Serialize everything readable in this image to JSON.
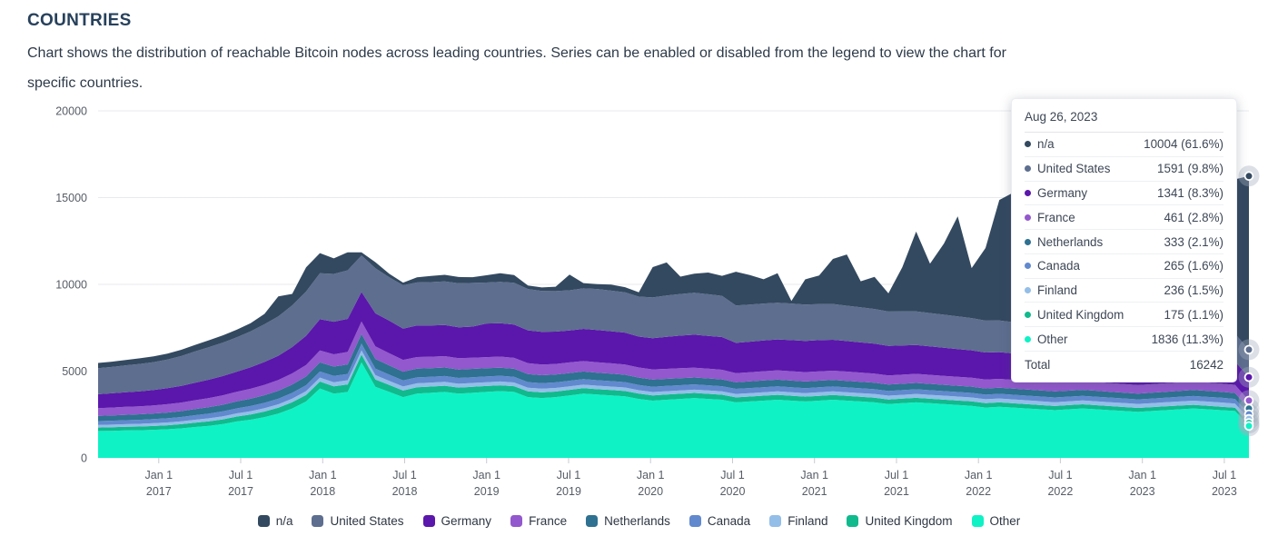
{
  "page": {
    "title": "COUNTRIES",
    "description_line1": "Chart shows the distribution of reachable Bitcoin nodes across leading countries. Series can be enabled or disabled from the legend to view the chart for",
    "description_line2": "specific countries."
  },
  "chart_data": {
    "type": "area",
    "stacked": true,
    "title": "COUNTRIES",
    "xlabel": "",
    "ylabel": "",
    "grid": "horizontal",
    "legend_position": "bottom",
    "x_start": 2016.63,
    "x_end": 2023.65,
    "ylim": [
      0,
      20000
    ],
    "y_ticks": [
      0,
      5000,
      10000,
      15000,
      20000
    ],
    "x_ticks": [
      {
        "v": 2017.0,
        "l1": "Jan 1",
        "l2": "2017"
      },
      {
        "v": 2017.5,
        "l1": "Jul 1",
        "l2": "2017"
      },
      {
        "v": 2018.0,
        "l1": "Jan 1",
        "l2": "2018"
      },
      {
        "v": 2018.5,
        "l1": "Jul 1",
        "l2": "2018"
      },
      {
        "v": 2019.0,
        "l1": "Jan 1",
        "l2": "2019"
      },
      {
        "v": 2019.5,
        "l1": "Jul 1",
        "l2": "2019"
      },
      {
        "v": 2020.0,
        "l1": "Jan 1",
        "l2": "2020"
      },
      {
        "v": 2020.5,
        "l1": "Jul 1",
        "l2": "2020"
      },
      {
        "v": 2021.0,
        "l1": "Jan 1",
        "l2": "2021"
      },
      {
        "v": 2021.5,
        "l1": "Jul 1",
        "l2": "2021"
      },
      {
        "v": 2022.0,
        "l1": "Jan 1",
        "l2": "2022"
      },
      {
        "v": 2022.5,
        "l1": "Jul 1",
        "l2": "2022"
      },
      {
        "v": 2023.0,
        "l1": "Jan 1",
        "l2": "2023"
      },
      {
        "v": 2023.5,
        "l1": "Jul 1",
        "l2": "2023"
      }
    ],
    "series": [
      {
        "name": "n/a",
        "color": "#334960",
        "values": [
          300,
          300,
          310,
          320,
          330,
          340,
          360,
          380,
          400,
          420,
          440,
          470,
          600,
          1150,
          660,
          1400,
          1160,
          900,
          1040,
          190,
          350,
          200,
          150,
          300,
          350,
          380,
          360,
          330,
          420,
          500,
          450,
          200,
          200,
          250,
          900,
          300,
          280,
          350,
          300,
          250,
          1750,
          1900,
          1000,
          1100,
          1250,
          1150,
          1950,
          1700,
          1400,
          1700,
          150,
          1450,
          1650,
          2600,
          2950,
          1500,
          1850,
          1050,
          2550,
          4600,
          2850,
          4100,
          5770,
          2880,
          4180,
          6950,
          7470,
          7100,
          7400,
          7000,
          7250,
          7650,
          7400,
          7900,
          7650,
          8150,
          8500,
          8200,
          8650,
          8300,
          8800,
          8650,
          8900,
          10004
        ]
      },
      {
        "name": "United States",
        "color": "#5d6e8f",
        "values": [
          1500,
          1520,
          1550,
          1580,
          1600,
          1650,
          1720,
          1800,
          1870,
          1930,
          1980,
          2070,
          2170,
          2270,
          2400,
          2550,
          2650,
          2750,
          2800,
          2100,
          2600,
          2500,
          2500,
          2480,
          2500,
          2520,
          2540,
          2520,
          2360,
          2380,
          2400,
          2380,
          2360,
          2340,
          2320,
          2340,
          2360,
          2340,
          2320,
          2300,
          2350,
          2380,
          2400,
          2420,
          2400,
          2380,
          2150,
          2140,
          2130,
          2120,
          2110,
          2100,
          2080,
          2060,
          2040,
          2020,
          2000,
          1980,
          1960,
          1940,
          1920,
          1900,
          1880,
          1860,
          1840,
          1820,
          1800,
          1780,
          1760,
          1740,
          1720,
          1710,
          1700,
          1690,
          1680,
          1670,
          1660,
          1650,
          1640,
          1630,
          1620,
          1610,
          1600,
          1591
        ]
      },
      {
        "name": "Germany",
        "color": "#5b17ab",
        "values": [
          800,
          820,
          840,
          860,
          890,
          920,
          960,
          1010,
          1060,
          1110,
          1160,
          1240,
          1320,
          1400,
          1520,
          1680,
          1800,
          1880,
          1900,
          1700,
          1900,
          1880,
          1800,
          1820,
          1800,
          1790,
          1780,
          1790,
          1940,
          1930,
          1920,
          1900,
          1880,
          1860,
          1840,
          1850,
          1860,
          1850,
          1840,
          1780,
          1800,
          1850,
          1880,
          1900,
          1890,
          1880,
          1750,
          1760,
          1770,
          1780,
          1790,
          1800,
          1800,
          1780,
          1760,
          1740,
          1720,
          1700,
          1680,
          1660,
          1640,
          1620,
          1600,
          1580,
          1560,
          1540,
          1520,
          1500,
          1480,
          1460,
          1450,
          1440,
          1430,
          1420,
          1410,
          1400,
          1390,
          1380,
          1370,
          1360,
          1355,
          1350,
          1345,
          1341
        ]
      },
      {
        "name": "France",
        "color": "#9358cd",
        "values": [
          450,
          455,
          460,
          465,
          470,
          480,
          495,
          510,
          525,
          540,
          555,
          575,
          595,
          615,
          640,
          665,
          690,
          710,
          720,
          720,
          730,
          700,
          680,
          670,
          660,
          655,
          650,
          645,
          640,
          635,
          630,
          625,
          620,
          615,
          610,
          605,
          600,
          595,
          590,
          585,
          580,
          575,
          570,
          565,
          560,
          555,
          520,
          525,
          530,
          535,
          540,
          538,
          536,
          534,
          532,
          530,
          528,
          526,
          524,
          522,
          520,
          518,
          516,
          514,
          512,
          510,
          508,
          506,
          504,
          502,
          500,
          498,
          496,
          494,
          492,
          490,
          488,
          486,
          484,
          482,
          480,
          478,
          470,
          461
        ]
      },
      {
        "name": "Netherlands",
        "color": "#2e7191",
        "values": [
          300,
          305,
          310,
          315,
          320,
          330,
          340,
          355,
          370,
          385,
          400,
          420,
          440,
          460,
          480,
          500,
          520,
          540,
          550,
          560,
          560,
          530,
          510,
          500,
          495,
          490,
          485,
          480,
          475,
          470,
          465,
          460,
          455,
          450,
          445,
          440,
          435,
          430,
          425,
          420,
          415,
          410,
          405,
          400,
          398,
          396,
          380,
          385,
          390,
          388,
          386,
          384,
          382,
          380,
          378,
          376,
          374,
          372,
          370,
          368,
          366,
          364,
          362,
          360,
          358,
          356,
          354,
          352,
          350,
          348,
          346,
          344,
          342,
          340,
          338,
          336,
          340,
          342,
          344,
          346,
          344,
          342,
          338,
          333
        ]
      },
      {
        "name": "Canada",
        "color": "#6189ce",
        "values": [
          220,
          225,
          230,
          235,
          240,
          245,
          250,
          260,
          270,
          280,
          290,
          300,
          310,
          320,
          330,
          340,
          350,
          360,
          365,
          380,
          370,
          355,
          345,
          340,
          338,
          336,
          334,
          332,
          330,
          328,
          326,
          324,
          322,
          320,
          318,
          316,
          314,
          312,
          310,
          308,
          306,
          304,
          302,
          300,
          298,
          296,
          294,
          292,
          290,
          288,
          286,
          284,
          282,
          280,
          278,
          276,
          274,
          272,
          270,
          268,
          266,
          264,
          262,
          260,
          262,
          264,
          266,
          268,
          270,
          272,
          270,
          268,
          266,
          264,
          262,
          260,
          262,
          264,
          266,
          268,
          270,
          272,
          270,
          265
        ]
      },
      {
        "name": "Finland",
        "color": "#93bee8",
        "values": [
          150,
          152,
          154,
          156,
          158,
          160,
          165,
          170,
          175,
          180,
          185,
          190,
          195,
          200,
          210,
          220,
          230,
          240,
          245,
          250,
          250,
          240,
          235,
          230,
          228,
          226,
          224,
          222,
          220,
          218,
          216,
          214,
          212,
          210,
          208,
          206,
          204,
          202,
          200,
          198,
          196,
          194,
          192,
          190,
          192,
          194,
          196,
          198,
          200,
          202,
          204,
          206,
          208,
          210,
          212,
          214,
          216,
          218,
          220,
          222,
          224,
          226,
          228,
          230,
          228,
          226,
          224,
          222,
          220,
          218,
          220,
          222,
          224,
          226,
          228,
          230,
          232,
          234,
          236,
          238,
          240,
          242,
          240,
          236
        ]
      },
      {
        "name": "United Kingdom",
        "color": "#10ba8d",
        "values": [
          200,
          205,
          210,
          215,
          220,
          230,
          240,
          250,
          260,
          270,
          280,
          300,
          320,
          340,
          360,
          380,
          400,
          420,
          430,
          450,
          420,
          400,
          380,
          370,
          360,
          355,
          350,
          345,
          340,
          335,
          330,
          330,
          325,
          320,
          320,
          315,
          310,
          310,
          305,
          300,
          300,
          298,
          296,
          294,
          292,
          290,
          288,
          286,
          284,
          282,
          280,
          278,
          276,
          274,
          272,
          270,
          268,
          266,
          264,
          262,
          260,
          258,
          256,
          254,
          252,
          250,
          248,
          246,
          244,
          242,
          240,
          238,
          236,
          234,
          232,
          230,
          225,
          220,
          215,
          210,
          205,
          200,
          190,
          175
        ]
      },
      {
        "name": "Other",
        "color": "#0ff2c6",
        "values": [
          1550,
          1560,
          1580,
          1590,
          1620,
          1650,
          1700,
          1780,
          1850,
          1950,
          2100,
          2200,
          2350,
          2550,
          2850,
          3250,
          4000,
          3700,
          3800,
          5500,
          4100,
          3800,
          3500,
          3700,
          3750,
          3800,
          3700,
          3750,
          3800,
          3850,
          3800,
          3500,
          3450,
          3500,
          3600,
          3700,
          3650,
          3600,
          3550,
          3400,
          3300,
          3350,
          3400,
          3450,
          3400,
          3350,
          3200,
          3250,
          3300,
          3350,
          3300,
          3250,
          3300,
          3350,
          3300,
          3250,
          3200,
          3100,
          3150,
          3200,
          3150,
          3100,
          3050,
          3000,
          2900,
          2950,
          2900,
          2850,
          2800,
          2750,
          2800,
          2850,
          2800,
          2750,
          2700,
          2650,
          2700,
          2750,
          2800,
          2850,
          2800,
          2750,
          2700,
          1836
        ]
      }
    ]
  },
  "tooltip": {
    "date": "Aug 26, 2023",
    "rows": [
      {
        "label": "n/a",
        "value": "10004 (61.6%)",
        "color": "#334960"
      },
      {
        "label": "United States",
        "value": "1591 (9.8%)",
        "color": "#5d6e8f"
      },
      {
        "label": "Germany",
        "value": "1341 (8.3%)",
        "color": "#5b17ab"
      },
      {
        "label": "France",
        "value": "461 (2.8%)",
        "color": "#9358cd"
      },
      {
        "label": "Netherlands",
        "value": "333 (2.1%)",
        "color": "#2e7191"
      },
      {
        "label": "Canada",
        "value": "265 (1.6%)",
        "color": "#6189ce"
      },
      {
        "label": "Finland",
        "value": "236 (1.5%)",
        "color": "#93bee8"
      },
      {
        "label": "United Kingdom",
        "value": "175 (1.1%)",
        "color": "#10ba8d"
      },
      {
        "label": "Other",
        "value": "1836 (11.3%)",
        "color": "#0ff2c6"
      }
    ],
    "total_label": "Total",
    "total_value": "16242"
  },
  "style_colors": {
    "axis_text": "#565d66",
    "gridline": "#e9eaed",
    "tick": "#c8cbd0",
    "marker_halo": "#a4adbe"
  }
}
